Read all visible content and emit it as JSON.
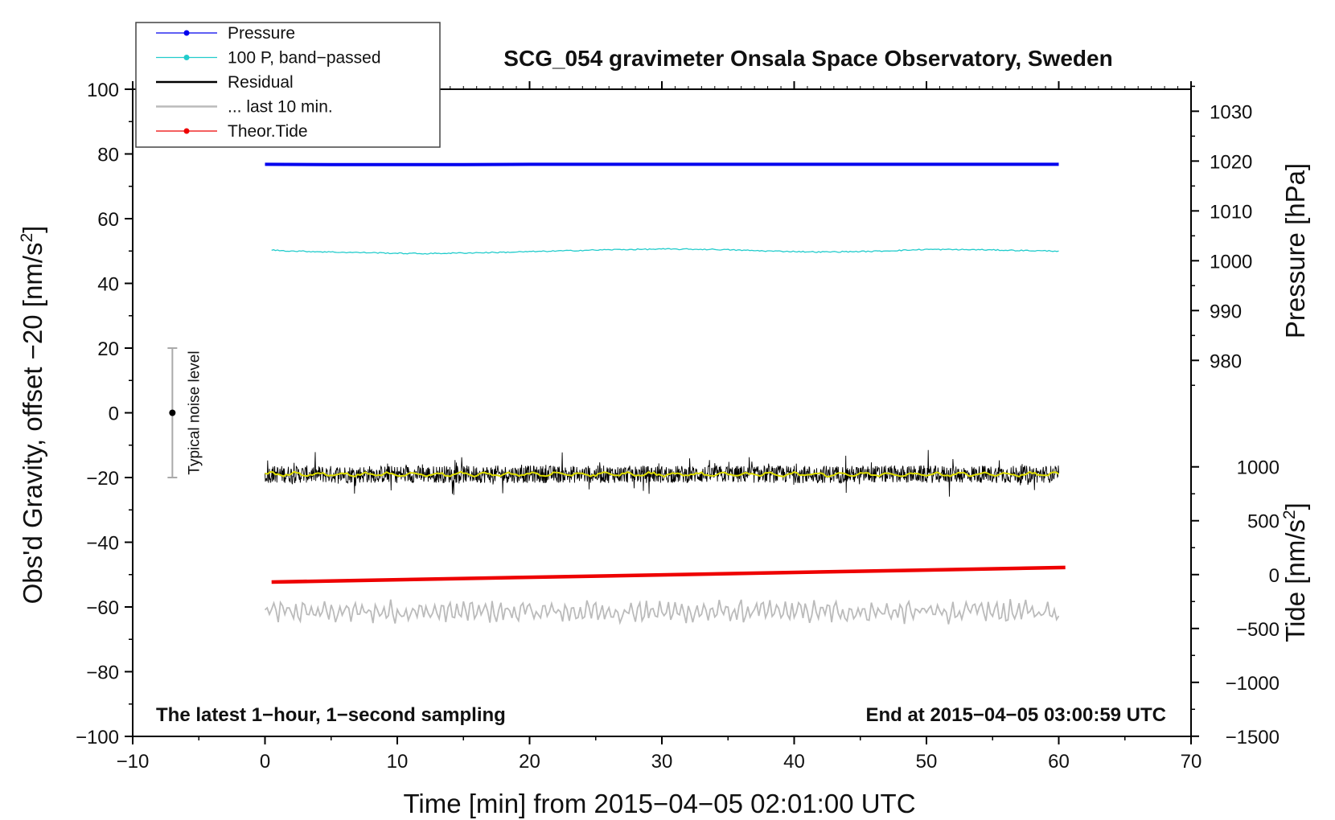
{
  "chart_data": {
    "type": "line",
    "title": "SCG_054 gravimeter Onsala Space Observatory, Sweden",
    "xlabel": "Time [min] from 2015−04−05 02:01:00 UTC",
    "ylabel": "Obs'd Gravity, offset −20 [nm/s",
    "ylabel_sup": "2",
    "ylabel_end": "]",
    "y2label_pressure": "Pressure [hPa]",
    "y2label_tide": "Tide [nm/s",
    "y2label_tide_sup": "2",
    "y2label_tide_end": "]",
    "xlim": [
      -10,
      70
    ],
    "ylim": [
      -100,
      100
    ],
    "xticks": [
      -10,
      0,
      10,
      20,
      30,
      40,
      50,
      60,
      70
    ],
    "xtick_labels": [
      "−10",
      "0",
      "10",
      "20",
      "30",
      "40",
      "50",
      "60",
      "70"
    ],
    "yticks": [
      -100,
      -80,
      -60,
      -40,
      -20,
      0,
      20,
      40,
      60,
      80,
      100
    ],
    "ytick_labels": [
      "−100",
      "−80",
      "−60",
      "−40",
      "−20",
      "0",
      "20",
      "40",
      "60",
      "80",
      "100"
    ],
    "pressure_axis": {
      "ticks": [
        980,
        990,
        1000,
        1010,
        1020,
        1030
      ],
      "tick_labels": [
        "980",
        "990",
        "1000",
        "1010",
        "1020",
        "1030"
      ],
      "gravity_at_1000": 47,
      "gravity_per_hPa": 1.54
    },
    "tide_axis": {
      "ticks": [
        -1500,
        -1000,
        -500,
        0,
        500,
        1000
      ],
      "tick_labels": [
        "−1500",
        "−1000",
        "−500",
        "0",
        "500",
        "1000"
      ],
      "gravity_at_0": -50,
      "gravity_per_nms2": 0.0333
    },
    "series": [
      {
        "name": "Pressure",
        "color": "#0000ee",
        "style": "dot-line",
        "x": [
          0,
          5,
          10,
          15,
          20,
          25,
          30,
          35,
          40,
          45,
          50,
          55,
          60
        ],
        "y": [
          76.8,
          76.7,
          76.7,
          76.7,
          76.8,
          76.8,
          76.8,
          76.8,
          76.8,
          76.8,
          76.8,
          76.8,
          76.8
        ]
      },
      {
        "name": "100 P, band−passed",
        "color": "#22cccc",
        "style": "dot-line",
        "x": [
          0.5,
          2,
          4,
          6,
          8,
          10,
          12,
          15,
          18,
          22,
          26,
          30,
          34,
          38,
          42,
          46,
          50,
          54,
          58,
          60
        ],
        "y": [
          50.3,
          50.0,
          49.8,
          49.6,
          49.5,
          49.3,
          49.2,
          49.4,
          49.6,
          50.0,
          50.4,
          50.6,
          50.5,
          50.0,
          49.7,
          49.9,
          50.5,
          50.4,
          50.1,
          50.0
        ]
      },
      {
        "name": "Residual",
        "color": "#000000",
        "style": "line",
        "x_start": 0,
        "x_end": 60,
        "center": -19,
        "amplitude": 4.5
      },
      {
        "name": "... last 10 min.",
        "color": "#bbbbbb",
        "style": "line",
        "x_start": 0,
        "x_end": 60,
        "center": -61.5,
        "amplitude": 3.5
      },
      {
        "name": "Theor.Tide",
        "color": "#ee0000",
        "style": "dot-line",
        "x": [
          0.5,
          60.5
        ],
        "y": [
          -52.3,
          -47.8
        ]
      }
    ],
    "smoothed_residual": {
      "color": "#dddd00",
      "center": -19
    },
    "noise_bar": {
      "label": "Typical noise level",
      "x": -7,
      "y": 0,
      "low": -20,
      "high": 20
    },
    "annotation_left": "The latest 1−hour, 1−second sampling",
    "annotation_right": "End at 2015−04−05 03:00:59 UTC",
    "legend": {
      "position": "top-left",
      "entries": [
        "Pressure",
        "100 P, band−passed",
        "Residual",
        "... last 10 min.",
        "Theor.Tide"
      ]
    }
  }
}
